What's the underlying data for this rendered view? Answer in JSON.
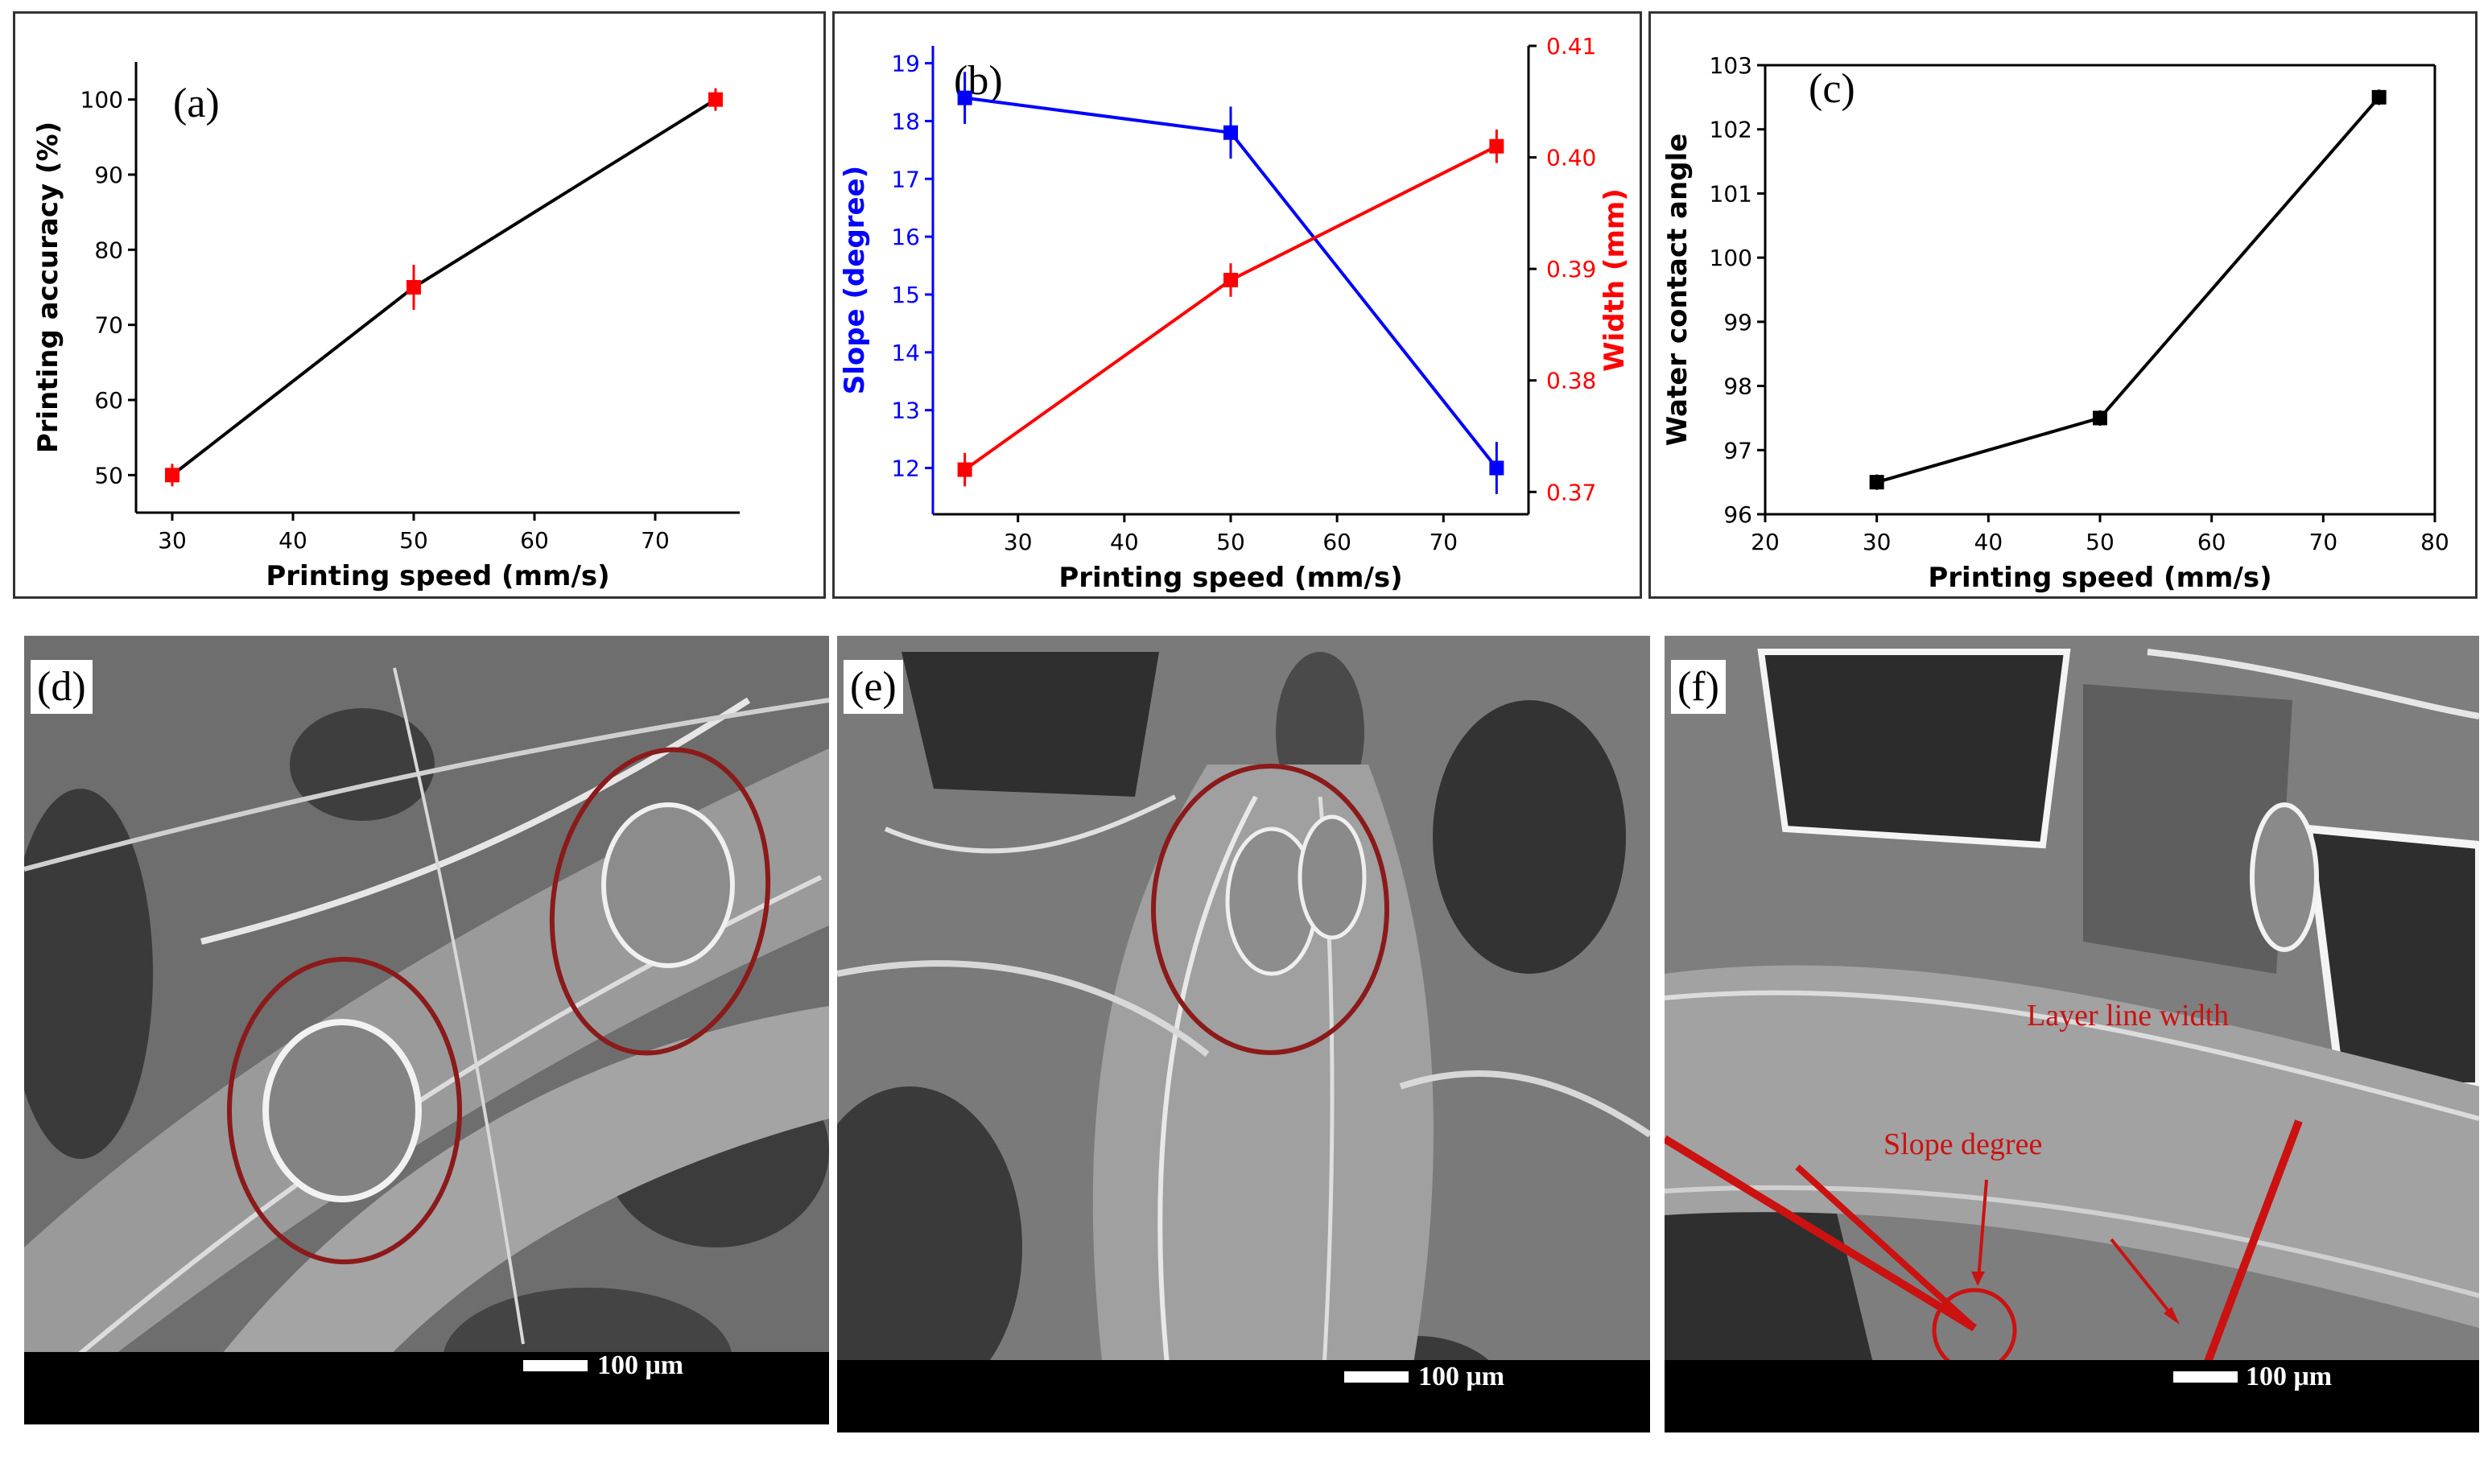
{
  "chart_data": [
    {
      "type": "line",
      "panel_label": "(a)",
      "x": [
        30,
        50,
        75
      ],
      "series": [
        {
          "values": [
            50,
            75,
            100
          ],
          "error": [
            1.5,
            3,
            1.5
          ]
        }
      ],
      "xlabel": "Printing speed (mm/s)",
      "ylabel": "Printing accuracy (%)",
      "xlim": [
        27,
        77
      ],
      "ylim": [
        45,
        105
      ],
      "xticks": [
        30,
        40,
        50,
        60,
        70
      ],
      "yticks": [
        50,
        60,
        70,
        80,
        90,
        100
      ],
      "line_color": "#000000",
      "marker_color": "#ff0000",
      "grid": false
    },
    {
      "type": "line",
      "panel_label": "(b)",
      "x": [
        25,
        50,
        75
      ],
      "series": [
        {
          "axis": "left",
          "values": [
            18.4,
            17.8,
            12.0
          ],
          "error": [
            0.45,
            0.45,
            0.45
          ],
          "color": "#0000ff"
        },
        {
          "axis": "right",
          "values": [
            0.372,
            0.389,
            0.401
          ],
          "error": [
            0.0015,
            0.0015,
            0.0015
          ],
          "color": "#ff0000"
        }
      ],
      "xlabel": "Printing speed (mm/s)",
      "ylabel": "Slope (degree)",
      "ylabel_right": "Width (mm)",
      "xlim": [
        22,
        78
      ],
      "ylim": [
        11.2,
        19.3
      ],
      "ylim_right": [
        0.368,
        0.41
      ],
      "xticks": [
        30,
        40,
        50,
        60,
        70
      ],
      "yticks": [
        12,
        13,
        14,
        15,
        16,
        17,
        18,
        19
      ],
      "yticks_right": [
        "0.37",
        "0.38",
        "0.39",
        "0.40",
        "0.41"
      ],
      "grid": false
    },
    {
      "type": "line",
      "panel_label": "(c)",
      "x": [
        30,
        50,
        75
      ],
      "series": [
        {
          "values": [
            96.5,
            97.5,
            102.5
          ],
          "error": [
            0.12,
            0.12,
            0.12
          ]
        }
      ],
      "xlabel": "Printing speed (mm/s)",
      "ylabel": "Water contact angle",
      "xlim": [
        20,
        80
      ],
      "ylim": [
        96,
        103
      ],
      "xticks": [
        20,
        30,
        40,
        50,
        60,
        70,
        80
      ],
      "yticks": [
        96,
        97,
        98,
        99,
        100,
        101,
        102,
        103
      ],
      "line_color": "#000000",
      "marker_color": "#000000",
      "grid": false
    }
  ],
  "images": [
    {
      "label": "(d)",
      "scale": "100 μm"
    },
    {
      "label": "(e)",
      "scale": "100 μm"
    },
    {
      "label": "(f)",
      "scale": "100 μm",
      "annotations": [
        "Layer line width",
        "Slope degree"
      ]
    }
  ],
  "colors": {
    "accent_red": "#cc1111",
    "circle_red": "#8b1a1a",
    "sem_gray": "#8a8a8a"
  }
}
